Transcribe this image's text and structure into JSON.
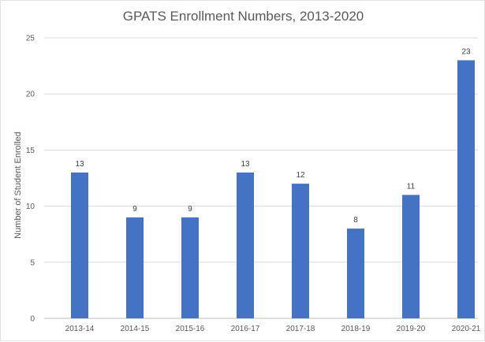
{
  "chart_data": {
    "type": "bar",
    "title": "GPATS Enrollment Numbers, 2013-2020",
    "xlabel": "",
    "ylabel": "Number of Student Enrolled",
    "categories": [
      "2013-14",
      "2014-15",
      "2015-16",
      "2016-17",
      "2017-18",
      "2018-19",
      "2019-20",
      "2020-21"
    ],
    "values": [
      13,
      9,
      9,
      13,
      12,
      8,
      11,
      23
    ],
    "data_labels": [
      "13",
      "9",
      "9",
      "13",
      "12",
      "8",
      "11",
      "23"
    ],
    "ylim": [
      0,
      25
    ],
    "yticks": [
      0,
      5,
      10,
      15,
      20,
      25
    ],
    "ytick_labels": [
      "0",
      "5",
      "10",
      "15",
      "20",
      "25"
    ],
    "grid": true,
    "legend": "none",
    "bar_color": "#4472C4",
    "grid_color": "#d9d9d9"
  }
}
